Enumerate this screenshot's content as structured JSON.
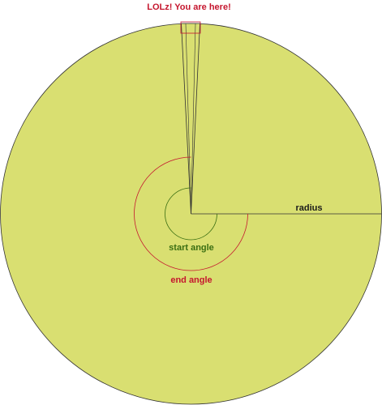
{
  "labels": {
    "marker": "LOLz! You are here!",
    "radius": "radius",
    "start_angle": "start angle",
    "end_angle": "end angle"
  },
  "colors": {
    "disc_fill": "#d9df71",
    "outline": "#333333",
    "marker_label": "#c5162e",
    "start_angle": "#3a6e12",
    "end_angle": "#c5162e",
    "end_angle_arc": "#c5162e",
    "start_angle_arc": "#3a6e12"
  }
}
